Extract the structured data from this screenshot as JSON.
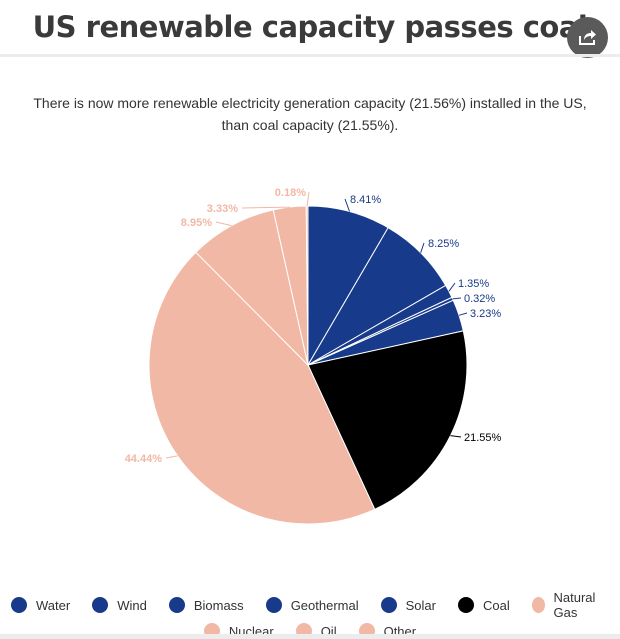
{
  "header": {
    "title": "US renewable capacity passes coal",
    "subtitle_line1": "There is now more renewable electricity generation capacity (21.56%) installed in the US,",
    "subtitle_line2": "than coal capacity (21.55%)."
  },
  "icons": {
    "share": "share-icon"
  },
  "colors": {
    "renewable": "#173a8b",
    "coal": "#000000",
    "fossil_other": "#f2b8a6"
  },
  "chart_data": {
    "type": "pie",
    "title": "US renewable capacity passes coal",
    "unit": "%",
    "slices": [
      {
        "name": "Water",
        "value": 8.41,
        "label": "8.41%",
        "color": "#173a8b"
      },
      {
        "name": "Wind",
        "value": 8.25,
        "label": "8.25%",
        "color": "#173a8b"
      },
      {
        "name": "Biomass",
        "value": 1.35,
        "label": "1.35%",
        "color": "#173a8b"
      },
      {
        "name": "Geothermal",
        "value": 0.32,
        "label": "0.32%",
        "color": "#173a8b"
      },
      {
        "name": "Solar",
        "value": 3.23,
        "label": "3.23%",
        "color": "#173a8b"
      },
      {
        "name": "Coal",
        "value": 21.55,
        "label": "21.55%",
        "color": "#000000"
      },
      {
        "name": "Natural Gas",
        "value": 44.44,
        "label": "44.44%",
        "color": "#f2b8a6"
      },
      {
        "name": "Nuclear",
        "value": 8.95,
        "label": "8.95%",
        "color": "#f2b8a6"
      },
      {
        "name": "Oil",
        "value": 3.33,
        "label": "3.33%",
        "color": "#f2b8a6"
      },
      {
        "name": "Other",
        "value": 0.18,
        "label": "0.18%",
        "color": "#f2b8a6"
      }
    ],
    "legend": [
      "Water",
      "Wind",
      "Biomass",
      "Geothermal",
      "Solar",
      "Coal",
      "Natural Gas",
      "Nuclear",
      "Oil",
      "Other"
    ],
    "legend_position": "bottom"
  }
}
